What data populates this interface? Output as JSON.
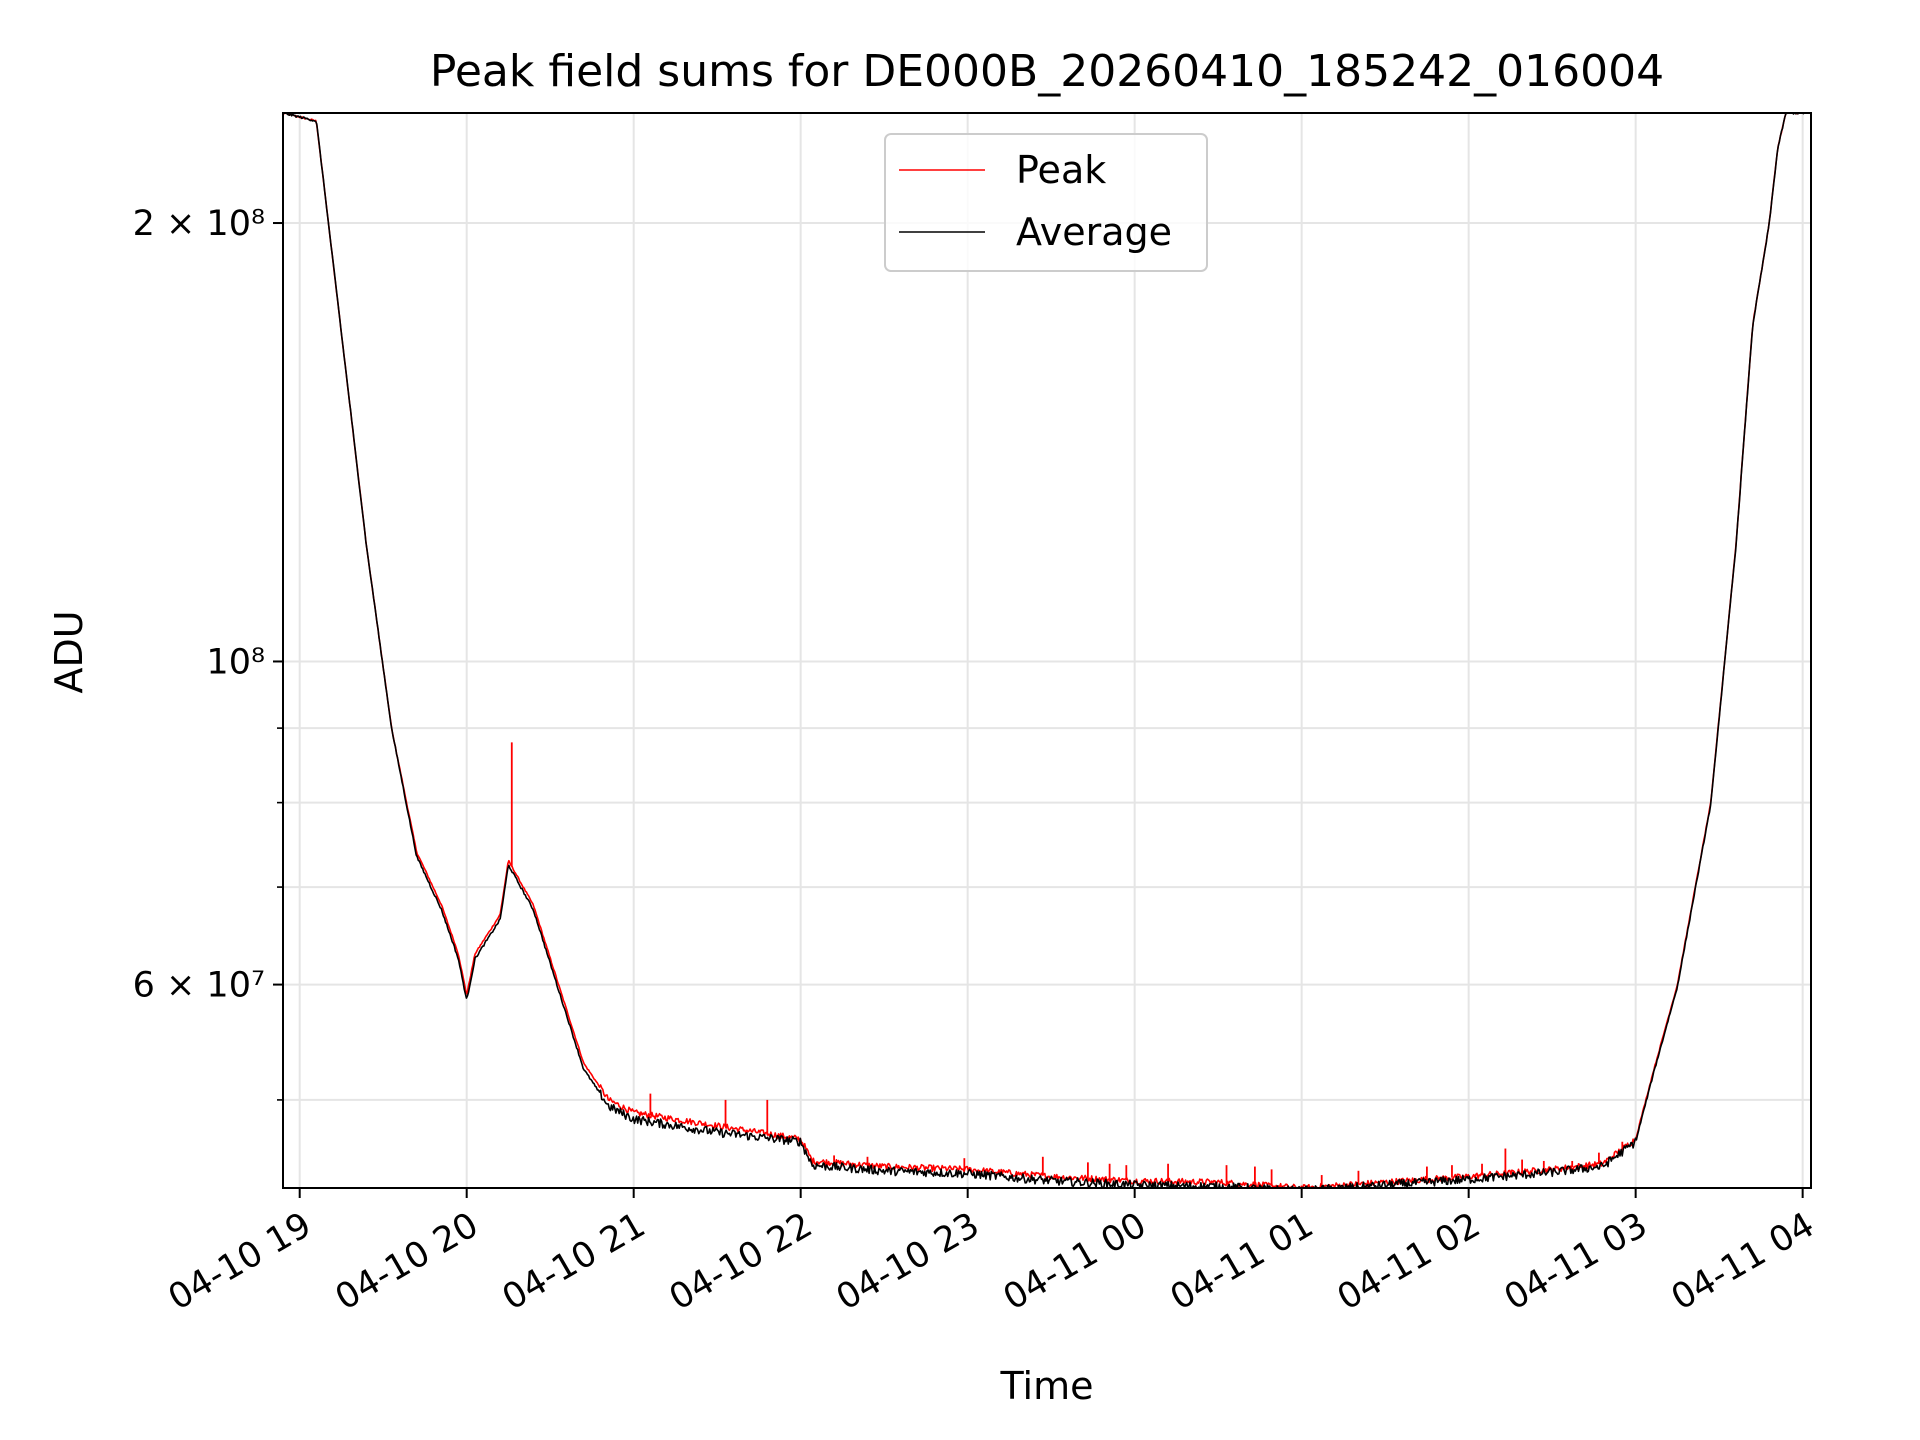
{
  "chart_data": {
    "type": "line",
    "title": "Peak field sums for DE000B_20260410_185242_016004",
    "xlabel": "Time",
    "ylabel": "ADU",
    "yscale": "log",
    "ylim": [
      43500000,
      238000000
    ],
    "xlim_hours": [
      -0.1,
      9.05
    ],
    "grid": true,
    "legend_position": "upper center",
    "x_ticks": [
      {
        "label": "04-10 19",
        "h": 0
      },
      {
        "label": "04-10 20",
        "h": 1
      },
      {
        "label": "04-10 21",
        "h": 2
      },
      {
        "label": "04-10 22",
        "h": 3
      },
      {
        "label": "04-10 23",
        "h": 4
      },
      {
        "label": "04-11 00",
        "h": 5
      },
      {
        "label": "04-11 01",
        "h": 6
      },
      {
        "label": "04-11 02",
        "h": 7
      },
      {
        "label": "04-11 03",
        "h": 8
      },
      {
        "label": "04-11 04",
        "h": 9
      }
    ],
    "y_major_ticks": [
      {
        "label": "2 × 10⁸",
        "value": 200000000
      },
      {
        "label": "10⁸",
        "value": 100000000
      },
      {
        "label": "6 × 10⁷",
        "value": 60000000
      }
    ],
    "y_minor_ticks": [
      50000000,
      70000000,
      80000000,
      90000000
    ],
    "series": [
      {
        "name": "Peak",
        "color": "#ff0000",
        "x_hours": [
          -0.1,
          0.1,
          0.25,
          0.4,
          0.55,
          0.7,
          0.85,
          0.95,
          1.0,
          1.05,
          1.2,
          1.25,
          1.4,
          1.55,
          1.7,
          1.85,
          2.0,
          2.5,
          3.0,
          3.07,
          3.5,
          4.0,
          4.5,
          5.0,
          5.5,
          6.0,
          6.5,
          7.0,
          7.5,
          7.8,
          8.0,
          8.1,
          8.25,
          8.45,
          8.6,
          8.7,
          8.8,
          8.85,
          8.9,
          9.05
        ],
        "values": [
          238000000,
          235000000,
          168000000,
          120000000,
          90000000,
          74000000,
          68000000,
          63000000,
          59000000,
          63000000,
          67000000,
          73000000,
          68000000,
          60000000,
          53000000,
          50000000,
          49000000,
          48000000,
          47000000,
          45400000,
          45000000,
          44800000,
          44300000,
          44000000,
          43900000,
          43500000,
          43900000,
          44300000,
          44800000,
          45200000,
          47000000,
          52000000,
          60000000,
          80000000,
          120000000,
          170000000,
          200000000,
          225000000,
          238000000,
          238000000
        ],
        "spikes": [
          {
            "h": 1.27,
            "value": 88000000
          },
          {
            "h": 2.1,
            "value": 50500000
          },
          {
            "h": 2.55,
            "value": 50000000
          },
          {
            "h": 2.8,
            "value": 50000000
          },
          {
            "h": 3.2,
            "value": 45800000
          },
          {
            "h": 3.4,
            "value": 45700000
          },
          {
            "h": 3.98,
            "value": 45600000
          },
          {
            "h": 4.45,
            "value": 45700000
          },
          {
            "h": 4.72,
            "value": 45300000
          },
          {
            "h": 4.85,
            "value": 45200000
          },
          {
            "h": 4.95,
            "value": 45100000
          },
          {
            "h": 5.2,
            "value": 45200000
          },
          {
            "h": 5.55,
            "value": 45100000
          },
          {
            "h": 5.72,
            "value": 45000000
          },
          {
            "h": 5.82,
            "value": 44800000
          },
          {
            "h": 6.12,
            "value": 44400000
          },
          {
            "h": 6.34,
            "value": 44700000
          },
          {
            "h": 6.75,
            "value": 45000000
          },
          {
            "h": 6.9,
            "value": 45100000
          },
          {
            "h": 7.08,
            "value": 45200000
          },
          {
            "h": 7.22,
            "value": 46300000
          },
          {
            "h": 7.32,
            "value": 45500000
          },
          {
            "h": 7.45,
            "value": 45400000
          },
          {
            "h": 7.62,
            "value": 45400000
          },
          {
            "h": 7.78,
            "value": 46000000
          },
          {
            "h": 7.92,
            "value": 46800000
          }
        ]
      },
      {
        "name": "Average",
        "color": "#000000",
        "x_hours": [
          -0.1,
          0.1,
          0.25,
          0.4,
          0.55,
          0.7,
          0.85,
          0.95,
          1.0,
          1.05,
          1.2,
          1.25,
          1.4,
          1.55,
          1.7,
          1.85,
          2.0,
          2.5,
          3.0,
          3.07,
          3.5,
          4.0,
          4.5,
          5.0,
          5.5,
          6.0,
          6.5,
          7.0,
          7.5,
          7.8,
          8.0,
          8.1,
          8.25,
          8.45,
          8.6,
          8.7,
          8.8,
          8.85,
          8.9,
          9.05
        ],
        "values": [
          238000000,
          235000000,
          168000000,
          120000000,
          90000000,
          73500000,
          67500000,
          62500000,
          58500000,
          62500000,
          66500000,
          72500000,
          67500000,
          59500000,
          52500000,
          49500000,
          48500000,
          47500000,
          46800000,
          45100000,
          44700000,
          44500000,
          44000000,
          43700000,
          43600000,
          43300000,
          43700000,
          44100000,
          44600000,
          45000000,
          46800000,
          51800000,
          59800000,
          79800000,
          119800000,
          169800000,
          199800000,
          224800000,
          238000000,
          238000000
        ]
      }
    ]
  }
}
